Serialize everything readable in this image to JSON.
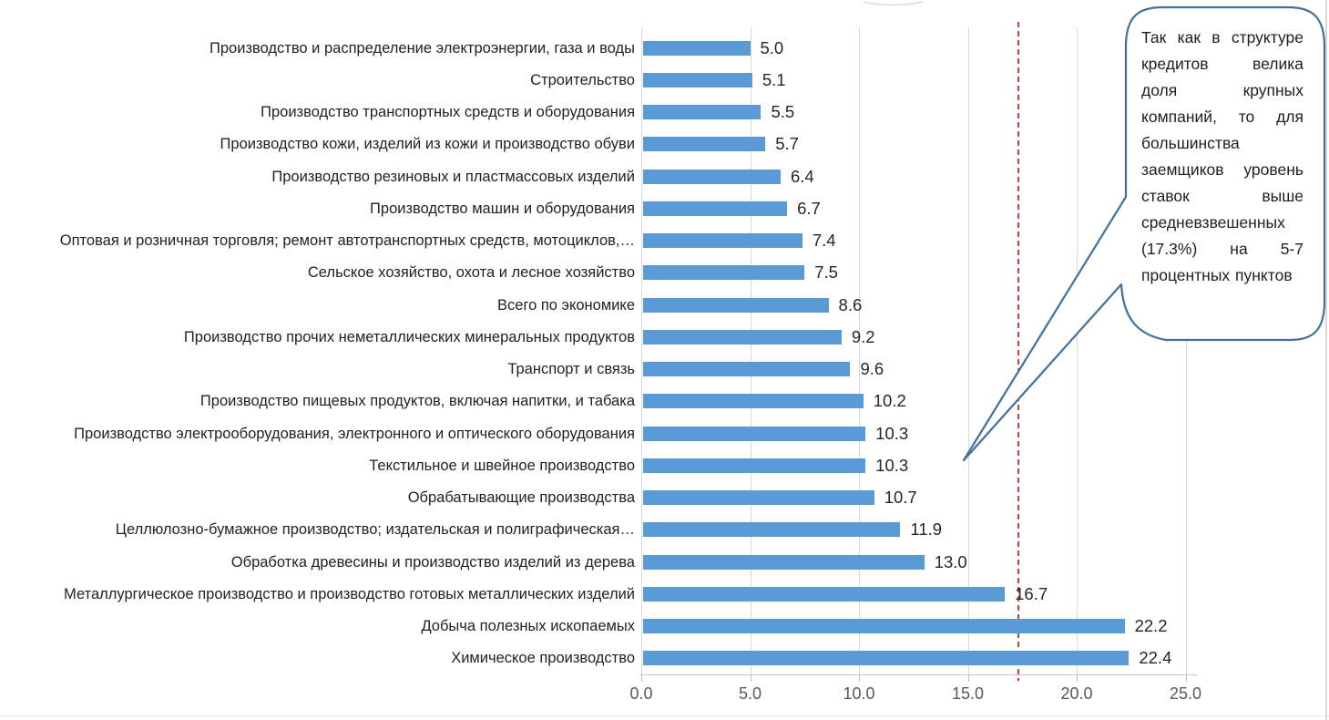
{
  "chart_data": {
    "type": "bar",
    "orientation": "horizontal",
    "title": "",
    "xlabel": "",
    "ylabel": "",
    "categories": [
      "Производство и распределение электроэнергии,  газа и воды",
      "Строительство",
      "Производство транспортных средств и  оборудования",
      "Производство кожи, изделий из кожи и  производство обуви",
      "Производство резиновых и пластмассовых  изделий",
      "Производство машин и оборудования",
      "Оптовая и розничная торговля; ремонт  автотранспортных средств, мотоциклов,…",
      "Сельское хозяйство, охота и лесное хозяйство",
      "Всего по экономике",
      "Производство прочих неметаллических  минеральных продуктов",
      "Транспорт и связь",
      "Производство пищевых продуктов, включая  напитки, и табака",
      "Производство электрооборудования,  электронного и оптического оборудования",
      "Текстильное и швейное производство",
      "Обрабатывающие производства",
      "Целлюлозно-бумажное производство;  издательская и полиграфическая…",
      "Обработка древесины и производство изделий  из дерева",
      "Металлургическое производство и  производство готовых металлических изделий",
      "Добыча полезных ископаемых",
      "Химическое производство"
    ],
    "values": [
      5.0,
      5.1,
      5.5,
      5.7,
      6.4,
      6.7,
      7.4,
      7.5,
      8.6,
      9.2,
      9.6,
      10.2,
      10.3,
      10.3,
      10.7,
      11.9,
      13.0,
      16.7,
      22.2,
      22.4
    ],
    "x_ticks": [
      "0.0",
      "5.0",
      "10.0",
      "15.0",
      "20.0",
      "25.0"
    ],
    "xlim": [
      0,
      25
    ],
    "grid": "vertical",
    "legend": "none",
    "bar_color": "#5b9bd5",
    "reference_line": {
      "value": 17.3,
      "style": "dashed",
      "color": "#cc3f3f"
    }
  },
  "callout": {
    "text": "Так как в структуре кредитов велика доля крупных компаний, то для большинства заемщиков уровень ставок выше средневзвешенных (17.3%) на 5-7 процентных пунктов",
    "border_color": "#41719c"
  }
}
